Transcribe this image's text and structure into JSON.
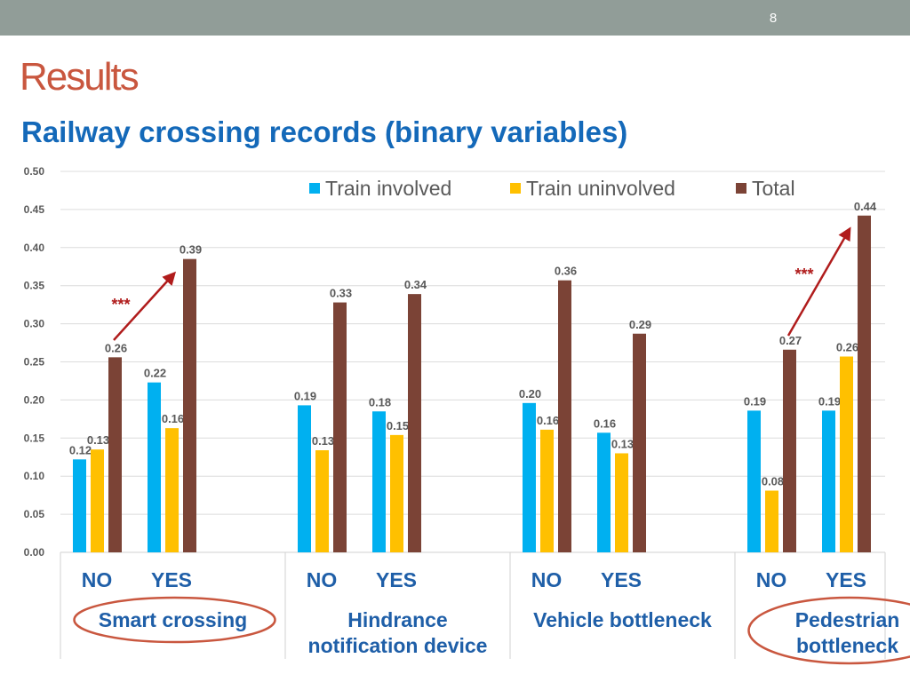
{
  "slide": {
    "page_number": "8",
    "title": "Results",
    "subtitle": "Railway crossing records (binary variables)"
  },
  "colors": {
    "topbar": "#919d98",
    "title": "#c9573f",
    "subtitle": "#1469b9",
    "arrow": "#b01c1c",
    "ellipse": "#c9573f"
  },
  "chart_data": {
    "type": "bar",
    "title": "",
    "xlabel": "",
    "ylabel": "",
    "ylim": [
      0,
      0.5
    ],
    "yticks": [
      "0.00",
      "0.05",
      "0.10",
      "0.15",
      "0.20",
      "0.25",
      "0.30",
      "0.35",
      "0.40",
      "0.45",
      "0.50"
    ],
    "legend_position": "top-right",
    "groups": [
      {
        "label": "Smart crossing",
        "lines": [
          "Smart crossing"
        ],
        "circled": true
      },
      {
        "label": "Hindrance notification device",
        "lines": [
          "Hindrance",
          "notification device"
        ],
        "circled": false
      },
      {
        "label": "Vehicle bottleneck",
        "lines": [
          "Vehicle bottleneck"
        ],
        "circled": false
      },
      {
        "label": "Pedestrian bottleneck",
        "lines": [
          "Pedestrian",
          "bottleneck"
        ],
        "circled": true
      }
    ],
    "categories": [
      "NO",
      "YES"
    ],
    "series": [
      {
        "name": "Train involved",
        "color": "#00b0f0",
        "values": [
          [
            0.122,
            0.223
          ],
          [
            0.193,
            0.185
          ],
          [
            0.196,
            0.157
          ],
          [
            0.186,
            0.186
          ]
        ],
        "labels": [
          [
            "0.12",
            "0.22"
          ],
          [
            "0.19",
            "0.18"
          ],
          [
            "0.20",
            "0.16"
          ],
          [
            "0.19",
            "0.19"
          ]
        ]
      },
      {
        "name": "Train uninvolved",
        "color": "#ffc000",
        "values": [
          [
            0.135,
            0.163
          ],
          [
            0.134,
            0.154
          ],
          [
            0.161,
            0.13
          ],
          [
            0.081,
            0.257
          ]
        ],
        "labels": [
          [
            "0.13",
            "0.16"
          ],
          [
            "0.13",
            "0.15"
          ],
          [
            "0.16",
            "0.13"
          ],
          [
            "0.08",
            "0.26"
          ]
        ]
      },
      {
        "name": "Total",
        "color": "#7b4336",
        "values": [
          [
            0.256,
            0.385
          ],
          [
            0.328,
            0.339
          ],
          [
            0.357,
            0.287
          ],
          [
            0.266,
            0.442
          ]
        ],
        "labels": [
          [
            "0.26",
            "0.39"
          ],
          [
            "0.33",
            "0.34"
          ],
          [
            "0.36",
            "0.29"
          ],
          [
            "0.27",
            "0.44"
          ]
        ]
      }
    ],
    "annotations": [
      {
        "text": "***",
        "group": 0
      },
      {
        "text": "***",
        "group": 3
      }
    ]
  }
}
